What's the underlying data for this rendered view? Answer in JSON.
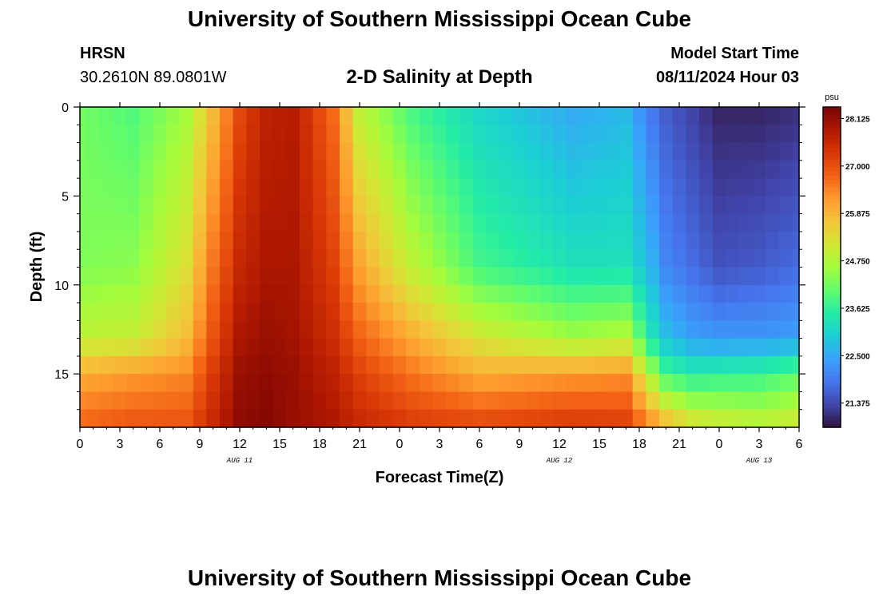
{
  "header": {
    "title": "University of Southern Mississippi Ocean Cube",
    "station": "HRSN",
    "coords": "30.2610N  89.0801W",
    "subtitle": "2-D Salinity at Depth",
    "model_label": "Model Start Time",
    "model_time": "08/11/2024 Hour 03"
  },
  "footer": {
    "title": "University of Southern Mississippi Ocean Cube"
  },
  "colors": {
    "colormap": [
      "#30123b",
      "#4145ab",
      "#4675ed",
      "#39a2fc",
      "#1bcfd4",
      "#24eca6",
      "#61fc6c",
      "#a4fc3b",
      "#d1e834",
      "#f3c63a",
      "#fe9b2d",
      "#f36315",
      "#d93806",
      "#b11901",
      "#7a0402"
    ]
  },
  "chart_data": {
    "type": "heatmap",
    "title": "2-D Salinity at Depth",
    "xlabel": "Forecast Time(Z)",
    "ylabel": "Depth (ft)",
    "x_hours_range": [
      0,
      54
    ],
    "xlim_hours": [
      0,
      54
    ],
    "ylim": [
      18,
      0
    ],
    "x_ticks_hours": [
      0,
      3,
      6,
      9,
      12,
      15,
      18,
      21,
      24,
      27,
      30,
      33,
      36,
      39,
      42,
      45,
      48,
      51,
      54
    ],
    "x_tick_labels": [
      "0",
      "3",
      "6",
      "9",
      "12",
      "15",
      "18",
      "21",
      "0",
      "3",
      "6",
      "9",
      "12",
      "15",
      "18",
      "21",
      "0",
      "3",
      "6"
    ],
    "y_ticks": [
      0,
      5,
      10,
      15
    ],
    "y_tick_labels": [
      "0",
      "5",
      "10",
      "15"
    ],
    "date_labels": [
      {
        "text": "AUG 11",
        "hour": 12
      },
      {
        "text": "AUG 12",
        "hour": 36
      },
      {
        "text": "AUG 13",
        "hour": 51
      }
    ],
    "colorbar": {
      "unit": "psu",
      "min": 20.8,
      "max": 28.4,
      "ticks": [
        28.125,
        27.0,
        25.875,
        24.75,
        23.625,
        22.5,
        21.375
      ],
      "tick_labels": [
        "28.125",
        "27.000",
        "25.875",
        "24.750",
        "23.625",
        "22.500",
        "21.375"
      ]
    },
    "depth_levels_ft": [
      0,
      9,
      13,
      15,
      18
    ],
    "time_profiles_hours": [
      0,
      4,
      8,
      10,
      12,
      14,
      16,
      19,
      21,
      25,
      30,
      37,
      41,
      43,
      44,
      46,
      48,
      51,
      54
    ],
    "salinity_profiles_psu": [
      [
        24.2,
        24.3,
        24.9,
        26.0,
        26.8
      ],
      [
        23.9,
        24.4,
        25.0,
        26.2,
        27.0
      ],
      [
        24.6,
        25.3,
        25.8,
        26.4,
        27.0
      ],
      [
        25.8,
        26.6,
        27.0,
        27.3,
        27.6
      ],
      [
        27.1,
        27.6,
        27.9,
        28.1,
        28.2
      ],
      [
        27.7,
        27.9,
        28.1,
        28.2,
        28.3
      ],
      [
        27.8,
        27.9,
        28.0,
        28.1,
        28.1
      ],
      [
        26.7,
        27.2,
        27.5,
        27.7,
        27.9
      ],
      [
        24.9,
        26.1,
        26.8,
        27.2,
        27.6
      ],
      [
        23.8,
        24.9,
        26.0,
        26.6,
        27.3
      ],
      [
        23.1,
        23.8,
        25.2,
        26.0,
        27.2
      ],
      [
        22.5,
        23.3,
        24.6,
        26.2,
        27.4
      ],
      [
        22.7,
        23.3,
        24.8,
        26.3,
        27.3
      ],
      [
        21.9,
        22.6,
        23.3,
        24.6,
        26.4
      ],
      [
        21.6,
        22.1,
        22.8,
        23.8,
        26.0
      ],
      [
        21.3,
        21.8,
        22.4,
        23.5,
        25.4
      ],
      [
        21.0,
        21.5,
        22.3,
        23.6,
        25.2
      ],
      [
        21.0,
        21.6,
        22.3,
        23.7,
        25.0
      ],
      [
        21.1,
        21.8,
        22.4,
        24.0,
        25.2
      ]
    ]
  }
}
